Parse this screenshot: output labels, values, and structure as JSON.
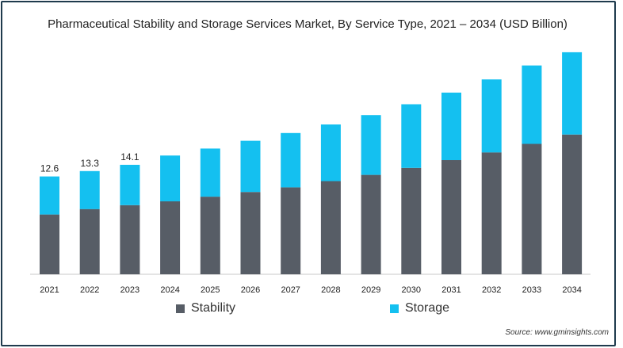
{
  "chart_data": {
    "type": "bar",
    "stacked": true,
    "title": "Pharmaceutical Stability and Storage Services Market, By Service Type, 2021 – 2034 (USD Billion)",
    "categories": [
      "2021",
      "2022",
      "2023",
      "2024",
      "2025",
      "2026",
      "2027",
      "2028",
      "2029",
      "2030",
      "2031",
      "2032",
      "2033",
      "2034"
    ],
    "series": [
      {
        "name": "Stability",
        "color": "#575d66",
        "values": [
          7.7,
          8.4,
          8.9,
          9.4,
          10.0,
          10.6,
          11.2,
          12.0,
          12.8,
          13.7,
          14.7,
          15.7,
          16.8,
          18.0
        ]
      },
      {
        "name": "Storage",
        "color": "#14c0f0",
        "values": [
          4.9,
          4.9,
          5.2,
          5.9,
          6.2,
          6.6,
          7.0,
          7.3,
          7.7,
          8.2,
          8.7,
          9.4,
          10.1,
          10.6
        ]
      }
    ],
    "data_labels": [
      "12.6",
      "13.3",
      "14.1"
    ],
    "ylim": [
      0,
      29
    ],
    "xlabel": "",
    "ylabel": "",
    "grid": false,
    "legend_position": "bottom-center"
  },
  "source_text": "Source: www.gminsights.com"
}
